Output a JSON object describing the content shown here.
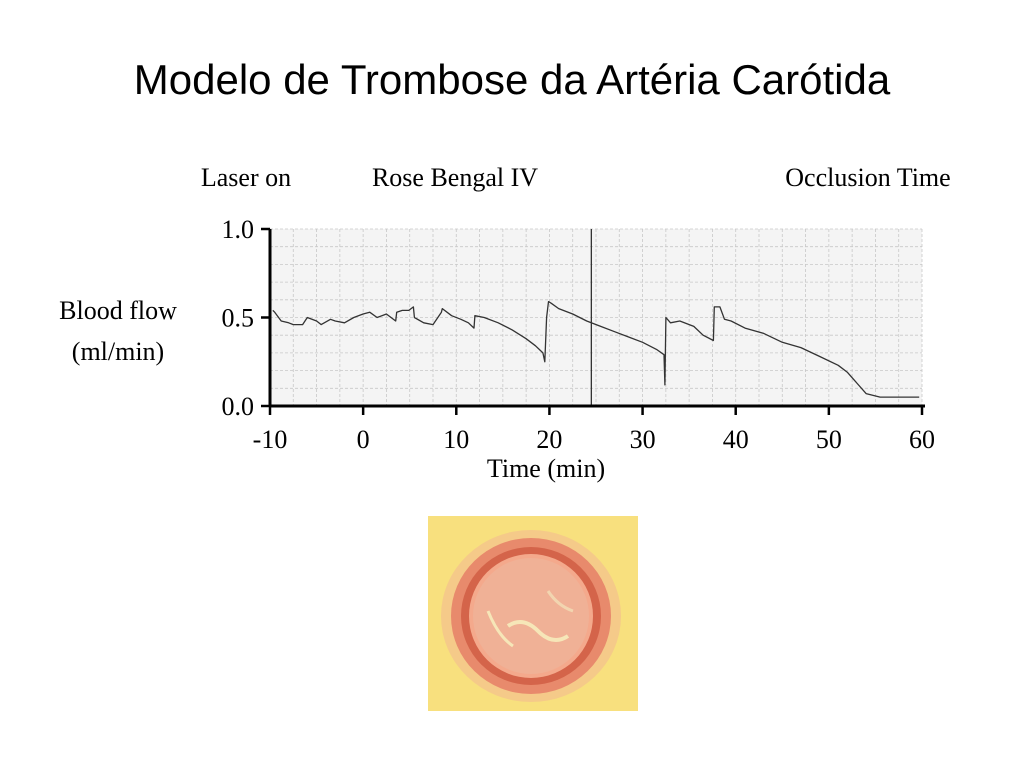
{
  "slide": {
    "title": "Modelo de Trombose da Artéria Carótida"
  },
  "chart_data": {
    "type": "line",
    "annotations": [
      "Laser on",
      "Rose Bengal IV",
      "Occlusion Time"
    ],
    "ylabel_lines": [
      "Blood flow",
      "(ml/min)"
    ],
    "xlabel": "Time (min)",
    "xlim": [
      -10,
      60
    ],
    "ylim": [
      0,
      1
    ],
    "xticks": [
      -10,
      0,
      10,
      20,
      30,
      40,
      50,
      60
    ],
    "yticks": [
      0,
      0.5,
      1
    ],
    "ytick_labels": [
      "0.0",
      "0.5",
      "1.0"
    ],
    "grid": true,
    "vline_x": 24.5,
    "series": [
      {
        "x": [
          -9.7,
          -9.5,
          -8.8,
          -8.0,
          -7.5,
          -6.5,
          -6.0,
          -5.0,
          -4.5,
          -3.5,
          -3.0,
          -2.0,
          -1.0,
          0.0,
          0.7,
          1.5,
          2.5,
          3.5,
          3.6,
          4.2,
          4.9,
          5.4,
          5.5,
          6.5,
          7.5,
          8.4,
          8.5,
          9.5,
          10.5,
          11.3,
          11.9,
          12.0,
          13.0,
          14.5,
          16.0,
          17.5,
          18.5,
          19.3,
          19.5,
          19.7,
          19.9,
          20.2,
          21.0,
          22.5,
          24.0,
          25.5,
          27.0,
          28.5,
          30.0,
          31.5,
          32.3,
          32.4,
          32.5,
          33.0,
          34.0,
          35.5,
          36.5,
          37.6,
          37.7,
          38.3,
          38.8,
          39.5,
          41.0,
          43.0,
          45.0,
          47.0,
          49.0,
          51.0,
          52.0,
          53.0,
          54.0,
          55.5,
          57.0,
          58.5,
          59.7
        ],
        "y": [
          0.54,
          0.53,
          0.48,
          0.47,
          0.46,
          0.46,
          0.5,
          0.48,
          0.46,
          0.49,
          0.48,
          0.47,
          0.5,
          0.52,
          0.53,
          0.5,
          0.52,
          0.48,
          0.53,
          0.54,
          0.54,
          0.56,
          0.5,
          0.47,
          0.46,
          0.53,
          0.55,
          0.51,
          0.49,
          0.47,
          0.44,
          0.51,
          0.5,
          0.47,
          0.43,
          0.38,
          0.34,
          0.3,
          0.25,
          0.5,
          0.59,
          0.58,
          0.55,
          0.52,
          0.48,
          0.45,
          0.42,
          0.39,
          0.36,
          0.32,
          0.29,
          0.12,
          0.5,
          0.47,
          0.48,
          0.45,
          0.4,
          0.37,
          0.56,
          0.56,
          0.49,
          0.48,
          0.44,
          0.41,
          0.36,
          0.33,
          0.28,
          0.23,
          0.19,
          0.13,
          0.07,
          0.05,
          0.05,
          0.05,
          0.05
        ]
      }
    ]
  }
}
